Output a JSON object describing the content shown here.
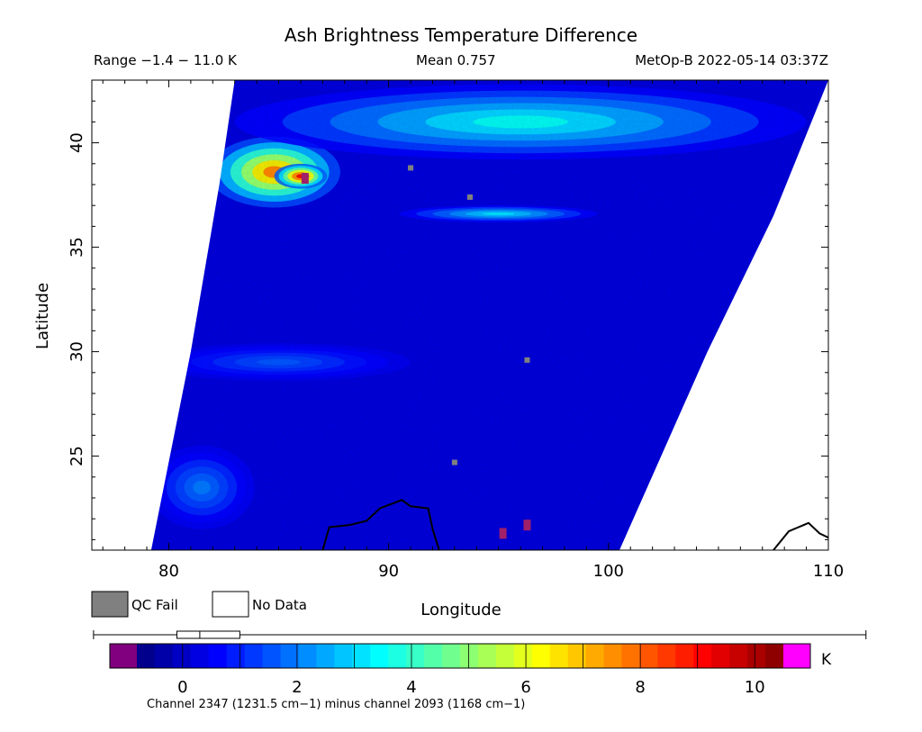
{
  "header": {
    "title": "Ash Brightness Temperature Difference",
    "range": "Range −1.4 − 11.0 K",
    "mean": "Mean 0.757",
    "satellite_time": "MetOp-B 2022-05-14 03:37Z"
  },
  "legend": {
    "qc_fail": "QC Fail",
    "no_data": "No Data",
    "qc_fail_color": "#808080",
    "no_data_color": "#ffffff"
  },
  "colorbar": {
    "unit": "K",
    "caption": "Channel 2347 (1231.5 cm−1) minus channel 2093 (1168 cm−1)",
    "ticks": [
      "0",
      "2",
      "4",
      "6",
      "8",
      "10"
    ],
    "tick_values": [
      0,
      2,
      4,
      6,
      8,
      10
    ],
    "min": -1.4,
    "max": 11.0,
    "under_color": "#800080",
    "over_color": "#ff00ff",
    "colors": [
      "#00007f",
      "#0000ff",
      "#007fff",
      "#00ffff",
      "#7fff7f",
      "#ffff00",
      "#ff7f00",
      "#ff0000",
      "#7f0000"
    ],
    "boxplot": {
      "min": -1.4,
      "q1": -0.1,
      "median": 0.3,
      "q3": 1.0,
      "max": 11.0
    }
  },
  "chart_data": {
    "type": "heatmap",
    "title": "Ash Brightness Temperature Difference",
    "xlabel": "Longitude",
    "ylabel": "Latitude",
    "xlim": [
      76.5,
      110
    ],
    "ylim": [
      20.5,
      43
    ],
    "x_ticks": [
      "80",
      "90",
      "100",
      "110"
    ],
    "x_tick_values": [
      80,
      90,
      100,
      110
    ],
    "y_ticks": [
      "25",
      "30",
      "35",
      "40"
    ],
    "y_tick_values": [
      25,
      30,
      35,
      40
    ],
    "swath": {
      "left_edge": [
        [
          79.2,
          20.5
        ],
        [
          81.0,
          30.0
        ],
        [
          82.3,
          38.0
        ],
        [
          83.0,
          43.0
        ]
      ],
      "right_edge": [
        [
          100.5,
          20.5
        ],
        [
          104.5,
          30.0
        ],
        [
          107.5,
          36.5
        ],
        [
          110.0,
          43.0
        ]
      ]
    },
    "background_value": 0.2,
    "features": [
      {
        "label": "ash plume",
        "lon": 84.8,
        "lat": 38.6,
        "value": 7.8,
        "rx": 3.0,
        "ry": 1.7
      },
      {
        "label": "ash plume core",
        "lon": 86.0,
        "lat": 38.4,
        "value": 9.2,
        "rx": 1.2,
        "ry": 0.6
      },
      {
        "label": "northern band",
        "lon": 96.0,
        "lat": 41.0,
        "value": 3.6,
        "rx": 13.0,
        "ry": 1.8
      },
      {
        "label": "streak",
        "lon": 95.0,
        "lat": 36.6,
        "value": 3.2,
        "rx": 4.5,
        "ry": 0.4
      },
      {
        "label": "mid band",
        "lon": 85.0,
        "lat": 29.5,
        "value": 1.6,
        "rx": 6.0,
        "ry": 0.9
      },
      {
        "label": "southwest patch",
        "lon": 81.5,
        "lat": 23.5,
        "value": 2.0,
        "rx": 2.4,
        "ry": 2.0
      }
    ],
    "qc_fail_points": [
      [
        93.7,
        37.4
      ],
      [
        96.3,
        29.6
      ],
      [
        93.0,
        24.7
      ],
      [
        91.0,
        38.8
      ]
    ],
    "overflow_points": [
      [
        95.2,
        21.3
      ],
      [
        96.3,
        21.7
      ],
      [
        86.2,
        38.3
      ]
    ],
    "coastlines": [
      [
        [
          87.0,
          20.5
        ],
        [
          87.3,
          21.6
        ],
        [
          88.2,
          21.7
        ],
        [
          89.0,
          21.9
        ],
        [
          89.6,
          22.5
        ],
        [
          90.6,
          22.9
        ],
        [
          91.0,
          22.6
        ],
        [
          91.8,
          22.5
        ],
        [
          92.0,
          21.5
        ],
        [
          92.3,
          20.5
        ]
      ],
      [
        [
          107.5,
          20.5
        ],
        [
          108.2,
          21.4
        ],
        [
          109.1,
          21.8
        ],
        [
          109.6,
          21.3
        ],
        [
          110.0,
          21.1
        ]
      ]
    ]
  }
}
